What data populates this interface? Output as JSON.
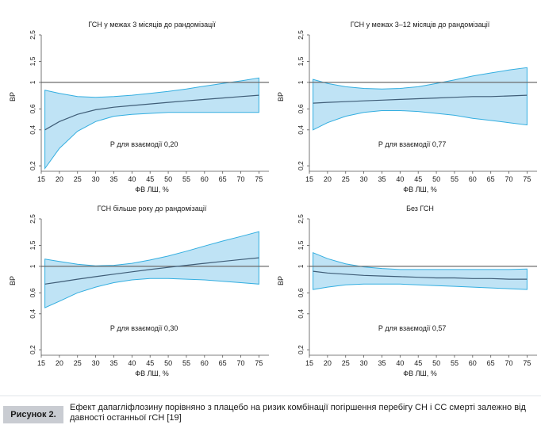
{
  "chart_data": [
    {
      "type": "area",
      "title": "ГСН у межах 3 місяців до рандомізації",
      "xlabel": "ФВ ЛШ, %",
      "ylabel": "ВР",
      "scale_y": "log",
      "xlim": [
        15,
        76
      ],
      "ylim": [
        0.18,
        2.5
      ],
      "x_ticks": [
        15,
        20,
        25,
        30,
        35,
        40,
        45,
        50,
        55,
        60,
        65,
        70,
        75
      ],
      "y_ticks": [
        0.2,
        0.4,
        0.6,
        1,
        1.5,
        2.5
      ],
      "y_tick_labels": [
        "0,2",
        "0,4",
        "0,6",
        "1",
        "1,5",
        "2,5"
      ],
      "reference_line": 1,
      "annotation": "Р для взаємодії 0,20",
      "x": [
        16,
        20,
        25,
        30,
        35,
        40,
        45,
        50,
        55,
        60,
        65,
        70,
        75
      ],
      "estimate": [
        0.4,
        0.47,
        0.54,
        0.59,
        0.62,
        0.64,
        0.66,
        0.68,
        0.7,
        0.72,
        0.74,
        0.76,
        0.78
      ],
      "lower": [
        0.19,
        0.28,
        0.39,
        0.47,
        0.52,
        0.54,
        0.55,
        0.56,
        0.56,
        0.56,
        0.56,
        0.56,
        0.56
      ],
      "upper": [
        0.86,
        0.81,
        0.76,
        0.75,
        0.76,
        0.78,
        0.81,
        0.84,
        0.88,
        0.93,
        0.98,
        1.03,
        1.09
      ]
    },
    {
      "type": "area",
      "title": "ГСН у межах 3–12 місяців до рандомізації",
      "xlabel": "ФВ ЛШ, %",
      "ylabel": "ВР",
      "scale_y": "log",
      "xlim": [
        15,
        76
      ],
      "ylim": [
        0.18,
        2.5
      ],
      "x_ticks": [
        15,
        20,
        25,
        30,
        35,
        40,
        45,
        50,
        55,
        60,
        65,
        70,
        75
      ],
      "y_ticks": [
        0.2,
        0.4,
        0.6,
        1,
        1.5,
        2.5
      ],
      "y_tick_labels": [
        "0,2",
        "0,4",
        "0,6",
        "1",
        "1,5",
        "2,5"
      ],
      "reference_line": 1,
      "annotation": "Р для взаємодії 0,77",
      "x": [
        16,
        20,
        25,
        30,
        35,
        40,
        45,
        50,
        55,
        60,
        65,
        70,
        75
      ],
      "estimate": [
        0.67,
        0.68,
        0.69,
        0.7,
        0.71,
        0.72,
        0.73,
        0.74,
        0.75,
        0.76,
        0.76,
        0.77,
        0.78
      ],
      "lower": [
        0.4,
        0.46,
        0.52,
        0.56,
        0.58,
        0.58,
        0.57,
        0.55,
        0.53,
        0.5,
        0.48,
        0.46,
        0.44
      ],
      "upper": [
        1.06,
        0.98,
        0.92,
        0.89,
        0.88,
        0.89,
        0.92,
        0.98,
        1.05,
        1.13,
        1.2,
        1.27,
        1.33
      ]
    },
    {
      "type": "area",
      "title": "ГСН більше року до рандомізації",
      "xlabel": "ФВ ЛШ, %",
      "ylabel": "ВР",
      "scale_y": "log",
      "xlim": [
        15,
        76
      ],
      "ylim": [
        0.18,
        2.5
      ],
      "x_ticks": [
        15,
        20,
        25,
        30,
        35,
        40,
        45,
        50,
        55,
        60,
        65,
        70,
        75
      ],
      "y_ticks": [
        0.2,
        0.4,
        0.6,
        1,
        1.5,
        2.5
      ],
      "y_tick_labels": [
        "0,2",
        "0,4",
        "0,6",
        "1",
        "1,5",
        "2,5"
      ],
      "reference_line": 1,
      "annotation": "Р для взаємодії 0,30",
      "x": [
        16,
        20,
        25,
        30,
        35,
        40,
        45,
        50,
        55,
        60,
        65,
        70,
        75
      ],
      "estimate": [
        0.71,
        0.74,
        0.78,
        0.82,
        0.86,
        0.9,
        0.94,
        0.98,
        1.02,
        1.06,
        1.1,
        1.14,
        1.18
      ],
      "lower": [
        0.45,
        0.51,
        0.6,
        0.67,
        0.73,
        0.77,
        0.79,
        0.79,
        0.78,
        0.77,
        0.75,
        0.73,
        0.71
      ],
      "upper": [
        1.15,
        1.1,
        1.04,
        1.01,
        1.02,
        1.06,
        1.13,
        1.22,
        1.34,
        1.48,
        1.63,
        1.78,
        1.95
      ]
    },
    {
      "type": "area",
      "title": "Без ГСН",
      "xlabel": "ФВ ЛШ, %",
      "ylabel": "ВР",
      "scale_y": "log",
      "xlim": [
        15,
        76
      ],
      "ylim": [
        0.18,
        2.5
      ],
      "x_ticks": [
        15,
        20,
        25,
        30,
        35,
        40,
        45,
        50,
        55,
        60,
        65,
        70,
        75
      ],
      "y_ticks": [
        0.2,
        0.4,
        0.6,
        1,
        1.5,
        2.5
      ],
      "y_tick_labels": [
        "0,2",
        "0,4",
        "0,6",
        "1",
        "1,5",
        "2,5"
      ],
      "reference_line": 1,
      "annotation": "Р для взаємодії 0,57",
      "x": [
        16,
        20,
        25,
        30,
        35,
        40,
        45,
        50,
        55,
        60,
        65,
        70,
        75
      ],
      "estimate": [
        0.91,
        0.88,
        0.86,
        0.84,
        0.83,
        0.82,
        0.81,
        0.8,
        0.8,
        0.79,
        0.79,
        0.78,
        0.78
      ],
      "lower": [
        0.64,
        0.67,
        0.7,
        0.71,
        0.71,
        0.71,
        0.7,
        0.69,
        0.68,
        0.67,
        0.66,
        0.65,
        0.64
      ],
      "upper": [
        1.3,
        1.16,
        1.05,
        0.99,
        0.96,
        0.94,
        0.94,
        0.94,
        0.94,
        0.94,
        0.94,
        0.94,
        0.95
      ]
    }
  ],
  "colors": {
    "band_fill": "#bfe3f5",
    "band_stroke": "#33aee0",
    "estimate_line": "#3f5d77",
    "reference_line": "#6b6b6b",
    "caption_label_bg": "#c9ccd2"
  },
  "caption": {
    "label": "Рисунок 2.",
    "text": "Ефект дапагліфлозину порівняно з плацебо на ризик комбінації погіршення перебігу СН і СС смерті залежно від давності останньої гСН [19]"
  }
}
